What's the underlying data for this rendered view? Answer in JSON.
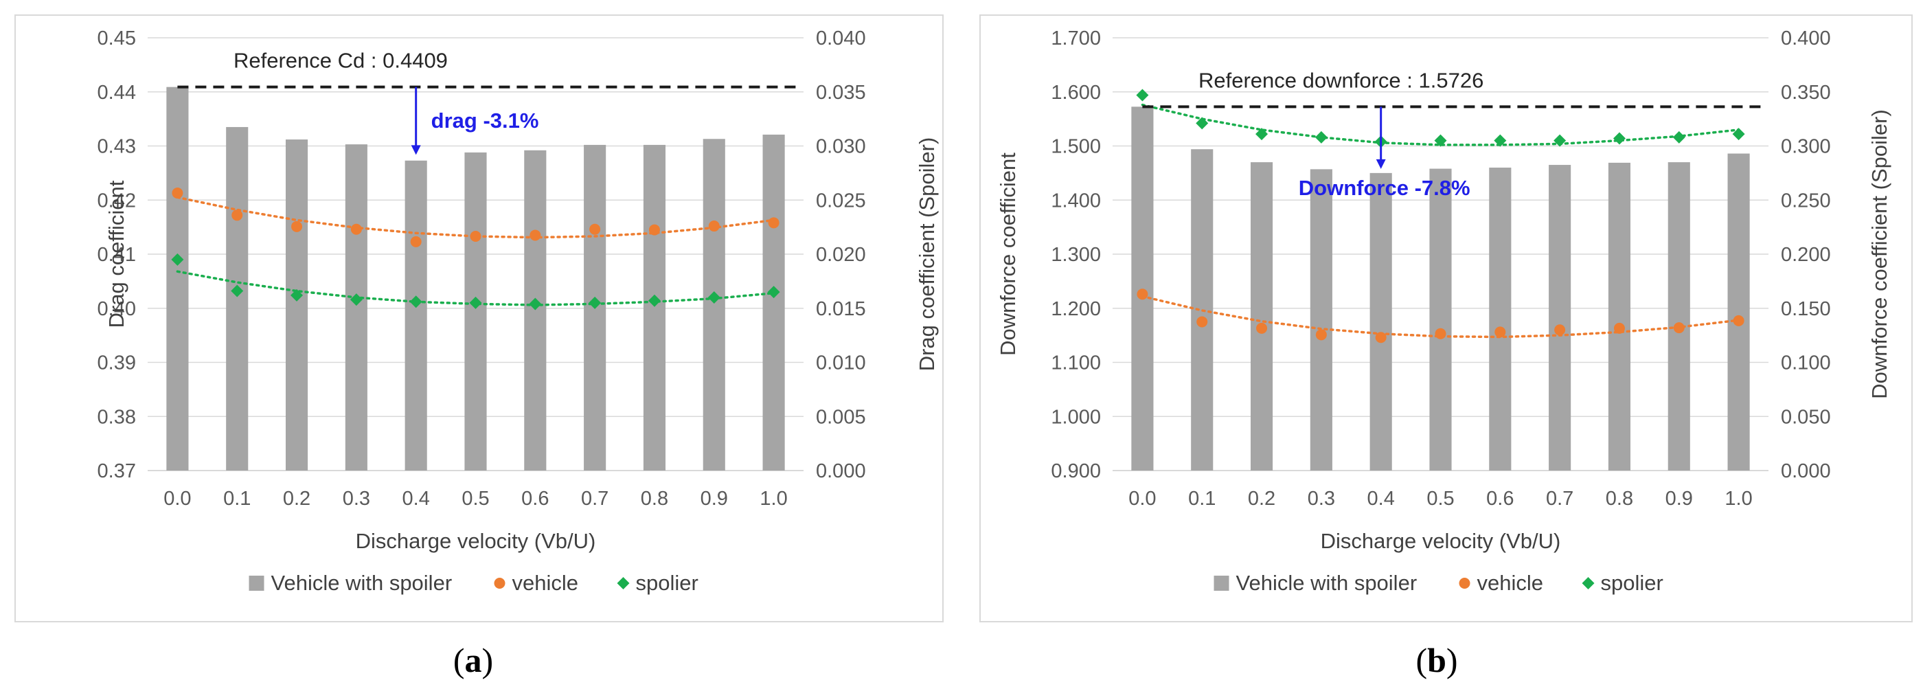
{
  "chart_data": [
    {
      "type": "bar",
      "panel_label": "(a)",
      "panel_letter": "a",
      "xlabel": "Discharge velocity (Vb/U)",
      "ylabel": "Drag coefficient",
      "ylabel_right": "Drag coefficient (Spoiler)",
      "categories": [
        "0.0",
        "0.1",
        "0.2",
        "0.3",
        "0.4",
        "0.5",
        "0.6",
        "0.7",
        "0.8",
        "0.9",
        "1.0"
      ],
      "ylim": [
        0.37,
        0.45
      ],
      "ystep": 0.01,
      "ydecimals": 2,
      "ylim_right": [
        0.0,
        0.04
      ],
      "ystep_right": 0.005,
      "ydecimals_right": 3,
      "grid": true,
      "legend": "bottom",
      "series": [
        {
          "name": "Vehicle with spoiler",
          "kind": "bar",
          "axis": "left",
          "color": "#a5a5a5",
          "values": [
            0.4409,
            0.4335,
            0.4312,
            0.4303,
            0.4273,
            0.4288,
            0.4292,
            0.4302,
            0.4302,
            0.4313,
            0.4321
          ]
        },
        {
          "name": "vehicle",
          "kind": "scatter",
          "marker": "circle",
          "axis": "left",
          "color": "#ed7d31",
          "values": [
            0.4213,
            0.4172,
            0.4151,
            0.4146,
            0.4123,
            0.4133,
            0.4135,
            0.4146,
            0.4145,
            0.4152,
            0.4158
          ]
        },
        {
          "name": "spolier",
          "kind": "scatter",
          "marker": "diamond",
          "axis": "right",
          "color": "#1aae4e",
          "values": [
            0.0195,
            0.0166,
            0.0162,
            0.0158,
            0.0156,
            0.0155,
            0.0154,
            0.0155,
            0.0157,
            0.016,
            0.0165
          ]
        }
      ],
      "trendlines": [
        {
          "series": "vehicle",
          "values": [
            0.4205,
            0.4182,
            0.4163,
            0.4149,
            0.4139,
            0.4133,
            0.4131,
            0.4133,
            0.4139,
            0.4149,
            0.4163
          ]
        },
        {
          "series": "spolier",
          "values": [
            0.0184,
            0.0174,
            0.0166,
            0.016,
            0.0156,
            0.0154,
            0.0153,
            0.0154,
            0.0156,
            0.0159,
            0.0164
          ]
        }
      ],
      "reference": {
        "label": "Reference Cd : 0.4409",
        "value": 0.4409
      },
      "annotation": {
        "text": "drag -3.1%",
        "category": "0.4",
        "from": 0.4409,
        "to": 0.4276
      }
    },
    {
      "type": "bar",
      "panel_label": "(b)",
      "panel_letter": "b",
      "xlabel": "Discharge velocity (Vb/U)",
      "ylabel": "Downforce coefficient",
      "ylabel_right": "Downforce coefficient (Spoiler)",
      "categories": [
        "0.0",
        "0.1",
        "0.2",
        "0.3",
        "0.4",
        "0.5",
        "0.6",
        "0.7",
        "0.8",
        "0.9",
        "1.0"
      ],
      "ylim": [
        0.9,
        1.7
      ],
      "ystep": 0.1,
      "ydecimals": 3,
      "ylim_right": [
        0.0,
        0.4
      ],
      "ystep_right": 0.05,
      "ydecimals_right": 3,
      "grid": true,
      "legend": "bottom",
      "series": [
        {
          "name": "Vehicle with spoiler",
          "kind": "bar",
          "axis": "left",
          "color": "#a5a5a5",
          "values": [
            1.5726,
            1.494,
            1.47,
            1.457,
            1.45,
            1.458,
            1.46,
            1.465,
            1.469,
            1.47,
            1.486
          ]
        },
        {
          "name": "vehicle",
          "kind": "scatter",
          "marker": "circle",
          "axis": "left",
          "color": "#ed7d31",
          "values": [
            1.226,
            1.175,
            1.163,
            1.151,
            1.146,
            1.153,
            1.156,
            1.16,
            1.163,
            1.164,
            1.177
          ]
        },
        {
          "name": "spolier",
          "kind": "scatter",
          "marker": "diamond",
          "axis": "right",
          "color": "#1aae4e",
          "values": [
            0.347,
            0.321,
            0.311,
            0.308,
            0.304,
            0.305,
            0.305,
            0.305,
            0.307,
            0.308,
            0.311
          ]
        }
      ],
      "trendlines": [
        {
          "series": "vehicle",
          "values": [
            1.222,
            1.196,
            1.176,
            1.162,
            1.153,
            1.148,
            1.147,
            1.15,
            1.156,
            1.165,
            1.178
          ]
        },
        {
          "series": "spolier",
          "values": [
            0.338,
            0.325,
            0.315,
            0.308,
            0.303,
            0.301,
            0.301,
            0.302,
            0.305,
            0.309,
            0.315
          ]
        }
      ],
      "reference": {
        "label": "Reference downforce  : 1.5726",
        "value": 1.5726
      },
      "annotation": {
        "text": "Downforce -7.8%",
        "category": "0.4",
        "from": 1.5726,
        "to": 1.45
      }
    }
  ]
}
